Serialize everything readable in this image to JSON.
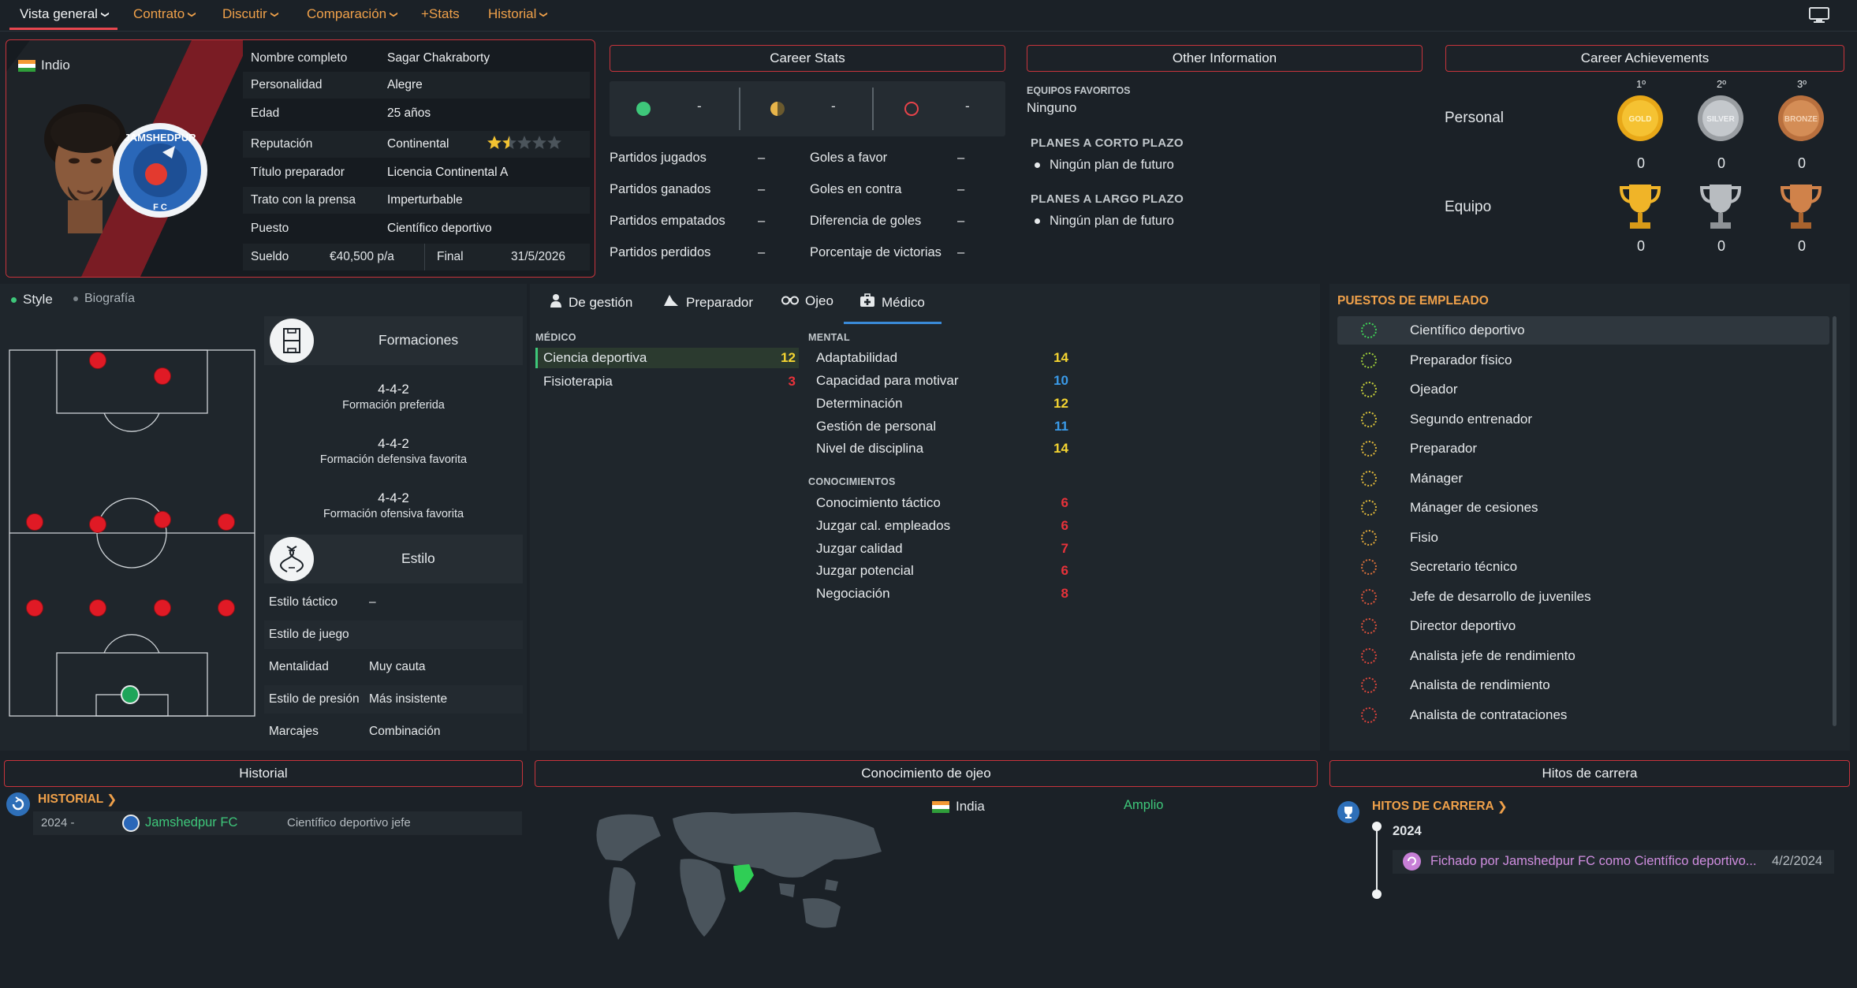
{
  "nav": {
    "items": [
      {
        "label": "Vista general",
        "chev": true
      },
      {
        "label": "Contrato",
        "chev": true
      },
      {
        "label": "Discutir",
        "chev": true
      },
      {
        "label": "Comparación",
        "chev": true
      },
      {
        "label": "+Stats",
        "chev": false
      },
      {
        "label": "Historial",
        "chev": true
      }
    ]
  },
  "profile": {
    "nationality": "Indio",
    "club_badge_text": "JAMSHEDPUR",
    "club_badge_sub": "F C",
    "rows": [
      {
        "label": "Nombre completo",
        "value": "Sagar Chakraborty"
      },
      {
        "label": "Personalidad",
        "value": "Alegre"
      },
      {
        "label": "Edad",
        "value": "25 años"
      },
      {
        "label": "Reputación",
        "value": "Continental"
      },
      {
        "label": "Título preparador",
        "value": "Licencia Continental A"
      },
      {
        "label": "Trato con la prensa",
        "value": "Imperturbable"
      },
      {
        "label": "Puesto",
        "value": "Científico deportivo"
      }
    ],
    "reputation_stars": 1.5,
    "salary_label": "Sueldo",
    "salary_value": "€40,500 p/a",
    "end_label": "Final",
    "end_value": "31/5/2026"
  },
  "career_stats": {
    "title": "Career Stats",
    "top": [
      "-",
      "-",
      "-"
    ],
    "left": [
      {
        "label": "Partidos jugados",
        "value": "–"
      },
      {
        "label": "Partidos ganados",
        "value": "–"
      },
      {
        "label": "Partidos empatados",
        "value": "–"
      },
      {
        "label": "Partidos perdidos",
        "value": "–"
      }
    ],
    "right": [
      {
        "label": "Goles a favor",
        "value": "–"
      },
      {
        "label": "Goles en contra",
        "value": "–"
      },
      {
        "label": "Diferencia de goles",
        "value": "–"
      },
      {
        "label": "Porcentaje de victorias",
        "value": "–"
      }
    ]
  },
  "other_info": {
    "title": "Other Information",
    "fav_label": "EQUIPOS FAVORITOS",
    "fav_value": "Ninguno",
    "short_label": "PLANES A CORTO PLAZO",
    "short_value": "Ningún plan de futuro",
    "long_label": "PLANES A LARGO PLAZO",
    "long_value": "Ningún plan de futuro"
  },
  "achievements": {
    "title": "Career Achievements",
    "ranks": [
      "1º",
      "2º",
      "3º"
    ],
    "medal_text": [
      "GOLD",
      "SILVER",
      "BRONZE"
    ],
    "personal_label": "Personal",
    "team_label": "Equipo",
    "personal": [
      "0",
      "0",
      "0"
    ],
    "team": [
      "0",
      "0",
      "0"
    ]
  },
  "style_panel": {
    "tab_style": "Style",
    "tab_bio": "Biografía",
    "formations_title": "Formaciones",
    "formations": [
      {
        "name": "4-4-2",
        "desc": "Formación preferida"
      },
      {
        "name": "4-4-2",
        "desc": "Formación defensiva favorita"
      },
      {
        "name": "4-4-2",
        "desc": "Formación ofensiva favorita"
      }
    ],
    "style_title": "Estilo",
    "style_rows": [
      {
        "label": "Estilo táctico",
        "value": "–"
      },
      {
        "label": "Estilo de juego",
        "value": ""
      },
      {
        "label": "Mentalidad",
        "value": "Muy cauta"
      },
      {
        "label": "Estilo de presión",
        "value": "Más insistente"
      },
      {
        "label": "Marcajes",
        "value": "Combinación"
      }
    ]
  },
  "attr_tabs": [
    "De gestión",
    "Preparador",
    "Ojeo",
    "Médico"
  ],
  "medical": {
    "section": "MÉDICO",
    "rows": [
      {
        "label": "Ciencia deportiva",
        "value": "12",
        "color": "#f5d531"
      },
      {
        "label": "Fisioterapia",
        "value": "3",
        "color": "#e8323a"
      }
    ]
  },
  "mental": {
    "section": "MENTAL",
    "rows": [
      {
        "label": "Adaptabilidad",
        "value": "14",
        "color": "#f5d531"
      },
      {
        "label": "Capacidad para motivar",
        "value": "10",
        "color": "#3a9ae8"
      },
      {
        "label": "Determinación",
        "value": "12",
        "color": "#f5d531"
      },
      {
        "label": "Gestión de personal",
        "value": "11",
        "color": "#3a9ae8"
      },
      {
        "label": "Nivel de disciplina",
        "value": "14",
        "color": "#f5d531"
      }
    ]
  },
  "knowledge": {
    "section": "CONOCIMIENTOS",
    "rows": [
      {
        "label": "Conocimiento táctico",
        "value": "6",
        "color": "#e8323a"
      },
      {
        "label": "Juzgar cal. empleados",
        "value": "6",
        "color": "#e8323a"
      },
      {
        "label": "Juzgar calidad",
        "value": "7",
        "color": "#e8323a"
      },
      {
        "label": "Juzgar potencial",
        "value": "6",
        "color": "#e8323a"
      },
      {
        "label": "Negociación",
        "value": "8",
        "color": "#e8323a"
      }
    ]
  },
  "positions": {
    "title": "PUESTOS DE EMPLEADO",
    "items": [
      {
        "label": "Científico deportivo",
        "color": "#3fcf55"
      },
      {
        "label": "Preparador físico",
        "color": "#9ccc3a"
      },
      {
        "label": "Ojeador",
        "color": "#c6cf3a"
      },
      {
        "label": "Segundo entrenador",
        "color": "#d9c33a"
      },
      {
        "label": "Preparador",
        "color": "#e0b83a"
      },
      {
        "label": "Mánager",
        "color": "#e0b83a"
      },
      {
        "label": "Mánager de cesiones",
        "color": "#e0b83a"
      },
      {
        "label": "Fisio",
        "color": "#e0a83a"
      },
      {
        "label": "Secretario técnico",
        "color": "#d9703a"
      },
      {
        "label": "Jefe de desarrollo de juveniles",
        "color": "#d9553a"
      },
      {
        "label": "Director deportivo",
        "color": "#d9503a"
      },
      {
        "label": "Analista jefe de rendimiento",
        "color": "#d9453a"
      },
      {
        "label": "Analista de rendimiento",
        "color": "#d9453a"
      },
      {
        "label": "Analista de contrataciones",
        "color": "#d9403a"
      }
    ]
  },
  "history": {
    "title": "Historial",
    "link": "HISTORIAL",
    "rows": [
      {
        "years": "2024 -",
        "club": "Jamshedpur FC",
        "role": "Científico deportivo jefe"
      }
    ]
  },
  "scout": {
    "title": "Conocimiento de ojeo",
    "rows": [
      {
        "country": "India",
        "level": "Amplio"
      }
    ]
  },
  "milestones": {
    "title": "Hitos de carrera",
    "link": "HITOS DE CARRERA",
    "year": "2024",
    "items": [
      {
        "text": "Fichado por Jamshedpur FC como Científico deportivo...",
        "date": "4/2/2024"
      }
    ]
  }
}
